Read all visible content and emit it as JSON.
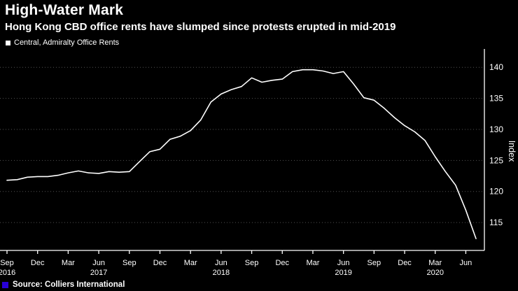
{
  "header": {
    "title": "High-Water Mark",
    "subtitle": "Hong Kong CBD office rents have slumped since protests erupted in mid-2019"
  },
  "legend": {
    "label": "Central, Admiralty Office Rents"
  },
  "source": {
    "label": "Source: Colliers International",
    "accent_color": "#2800d7"
  },
  "chart_data": {
    "type": "line",
    "title": "High-Water Mark",
    "subtitle": "Hong Kong CBD office rents have slumped since protests erupted in mid-2019",
    "ylabel": "Index",
    "ylim": [
      110.5,
      142.5
    ],
    "yticks": [
      115,
      120,
      125,
      130,
      135,
      140
    ],
    "grid": true,
    "grid_style": "dotted-horizontal",
    "legend_position": "top-left",
    "background_color": "#000000",
    "axis_color": "#ffffff",
    "grid_color": "rgba(255,255,255,0.32)",
    "text_color": "#ffffff",
    "x_frequency": "monthly",
    "x_ticks": [
      {
        "month_index": 0,
        "label": "Sep",
        "year": "2016"
      },
      {
        "month_index": 3,
        "label": "Dec"
      },
      {
        "month_index": 6,
        "label": "Mar"
      },
      {
        "month_index": 9,
        "label": "Jun",
        "year": "2017"
      },
      {
        "month_index": 12,
        "label": "Sep"
      },
      {
        "month_index": 15,
        "label": "Dec"
      },
      {
        "month_index": 18,
        "label": "Mar"
      },
      {
        "month_index": 21,
        "label": "Jun",
        "year": "2018"
      },
      {
        "month_index": 24,
        "label": "Sep"
      },
      {
        "month_index": 27,
        "label": "Dec"
      },
      {
        "month_index": 30,
        "label": "Mar"
      },
      {
        "month_index": 33,
        "label": "Jun",
        "year": "2019"
      },
      {
        "month_index": 36,
        "label": "Sep"
      },
      {
        "month_index": 39,
        "label": "Dec"
      },
      {
        "month_index": 42,
        "label": "Mar",
        "year": "2020"
      },
      {
        "month_index": 45,
        "label": "Jun"
      }
    ],
    "series": [
      {
        "name": "Central, Admiralty Office Rents",
        "color": "#ffffff",
        "x": [
          "2016-09",
          "2016-10",
          "2016-11",
          "2016-12",
          "2017-01",
          "2017-02",
          "2017-03",
          "2017-04",
          "2017-05",
          "2017-06",
          "2017-07",
          "2017-08",
          "2017-09",
          "2017-10",
          "2017-11",
          "2017-12",
          "2018-01",
          "2018-02",
          "2018-03",
          "2018-04",
          "2018-05",
          "2018-06",
          "2018-07",
          "2018-08",
          "2018-09",
          "2018-10",
          "2018-11",
          "2018-12",
          "2019-01",
          "2019-02",
          "2019-03",
          "2019-04",
          "2019-05",
          "2019-06",
          "2019-07",
          "2019-08",
          "2019-09",
          "2019-10",
          "2019-11",
          "2019-12",
          "2020-01",
          "2020-02",
          "2020-03",
          "2020-04",
          "2020-05",
          "2020-06",
          "2020-07"
        ],
        "values": [
          121.8,
          121.9,
          122.3,
          122.4,
          122.4,
          122.6,
          123.0,
          123.3,
          123.0,
          122.9,
          123.2,
          123.1,
          123.2,
          124.8,
          126.4,
          126.8,
          128.4,
          128.9,
          129.8,
          131.5,
          134.4,
          135.7,
          136.4,
          136.9,
          138.3,
          137.6,
          137.9,
          138.1,
          139.3,
          139.6,
          139.6,
          139.4,
          139.0,
          139.3,
          137.3,
          135.1,
          134.7,
          133.4,
          131.9,
          130.6,
          129.6,
          128.2,
          125.6,
          123.2,
          121.0,
          117.0,
          112.4
        ]
      }
    ]
  }
}
